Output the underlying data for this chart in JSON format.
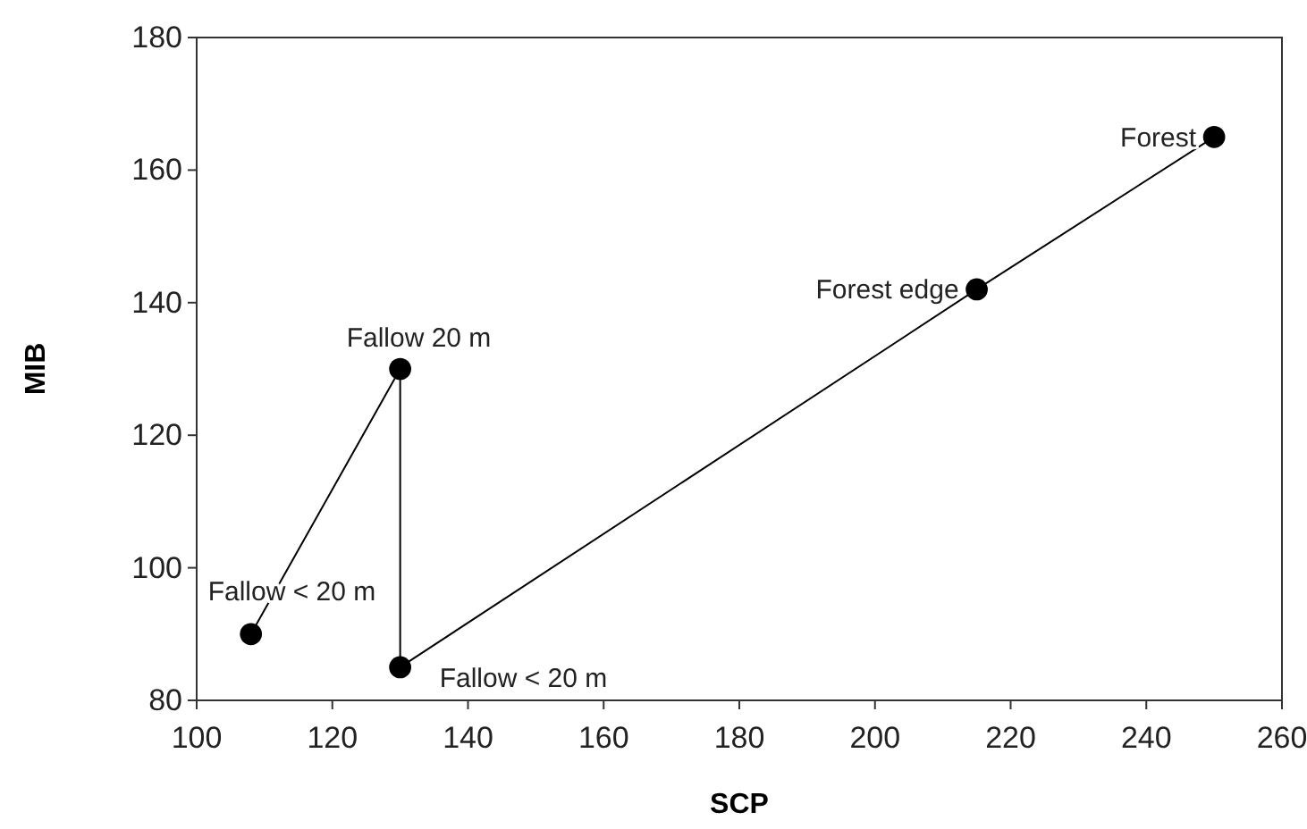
{
  "chart_data": {
    "type": "line",
    "xlabel": "SCP",
    "ylabel": "MIB",
    "x": [
      108,
      130,
      130,
      215,
      250
    ],
    "series": [
      {
        "color": "#000000",
        "values": [
          90,
          130,
          85,
          142,
          165
        ]
      }
    ],
    "xlim": [
      100,
      260
    ],
    "xticks": [
      100,
      120,
      140,
      160,
      180,
      200,
      220,
      240,
      260
    ],
    "ylim": [
      80,
      180
    ],
    "yticks": [
      80,
      100,
      120,
      140,
      160,
      180
    ],
    "grid": false,
    "marker": "circle",
    "line_style": "solid",
    "annotations": [
      {
        "text": "Fallow < 20 m",
        "x": 108,
        "y": 90
      },
      {
        "text": "Fallow 20 m",
        "x": 130,
        "y": 130
      },
      {
        "text": "Fallow < 20 m",
        "x": 130,
        "y": 85
      },
      {
        "text": "Forest edge",
        "x": 215,
        "y": 142
      },
      {
        "text": "Forest",
        "x": 250,
        "y": 165
      }
    ]
  }
}
